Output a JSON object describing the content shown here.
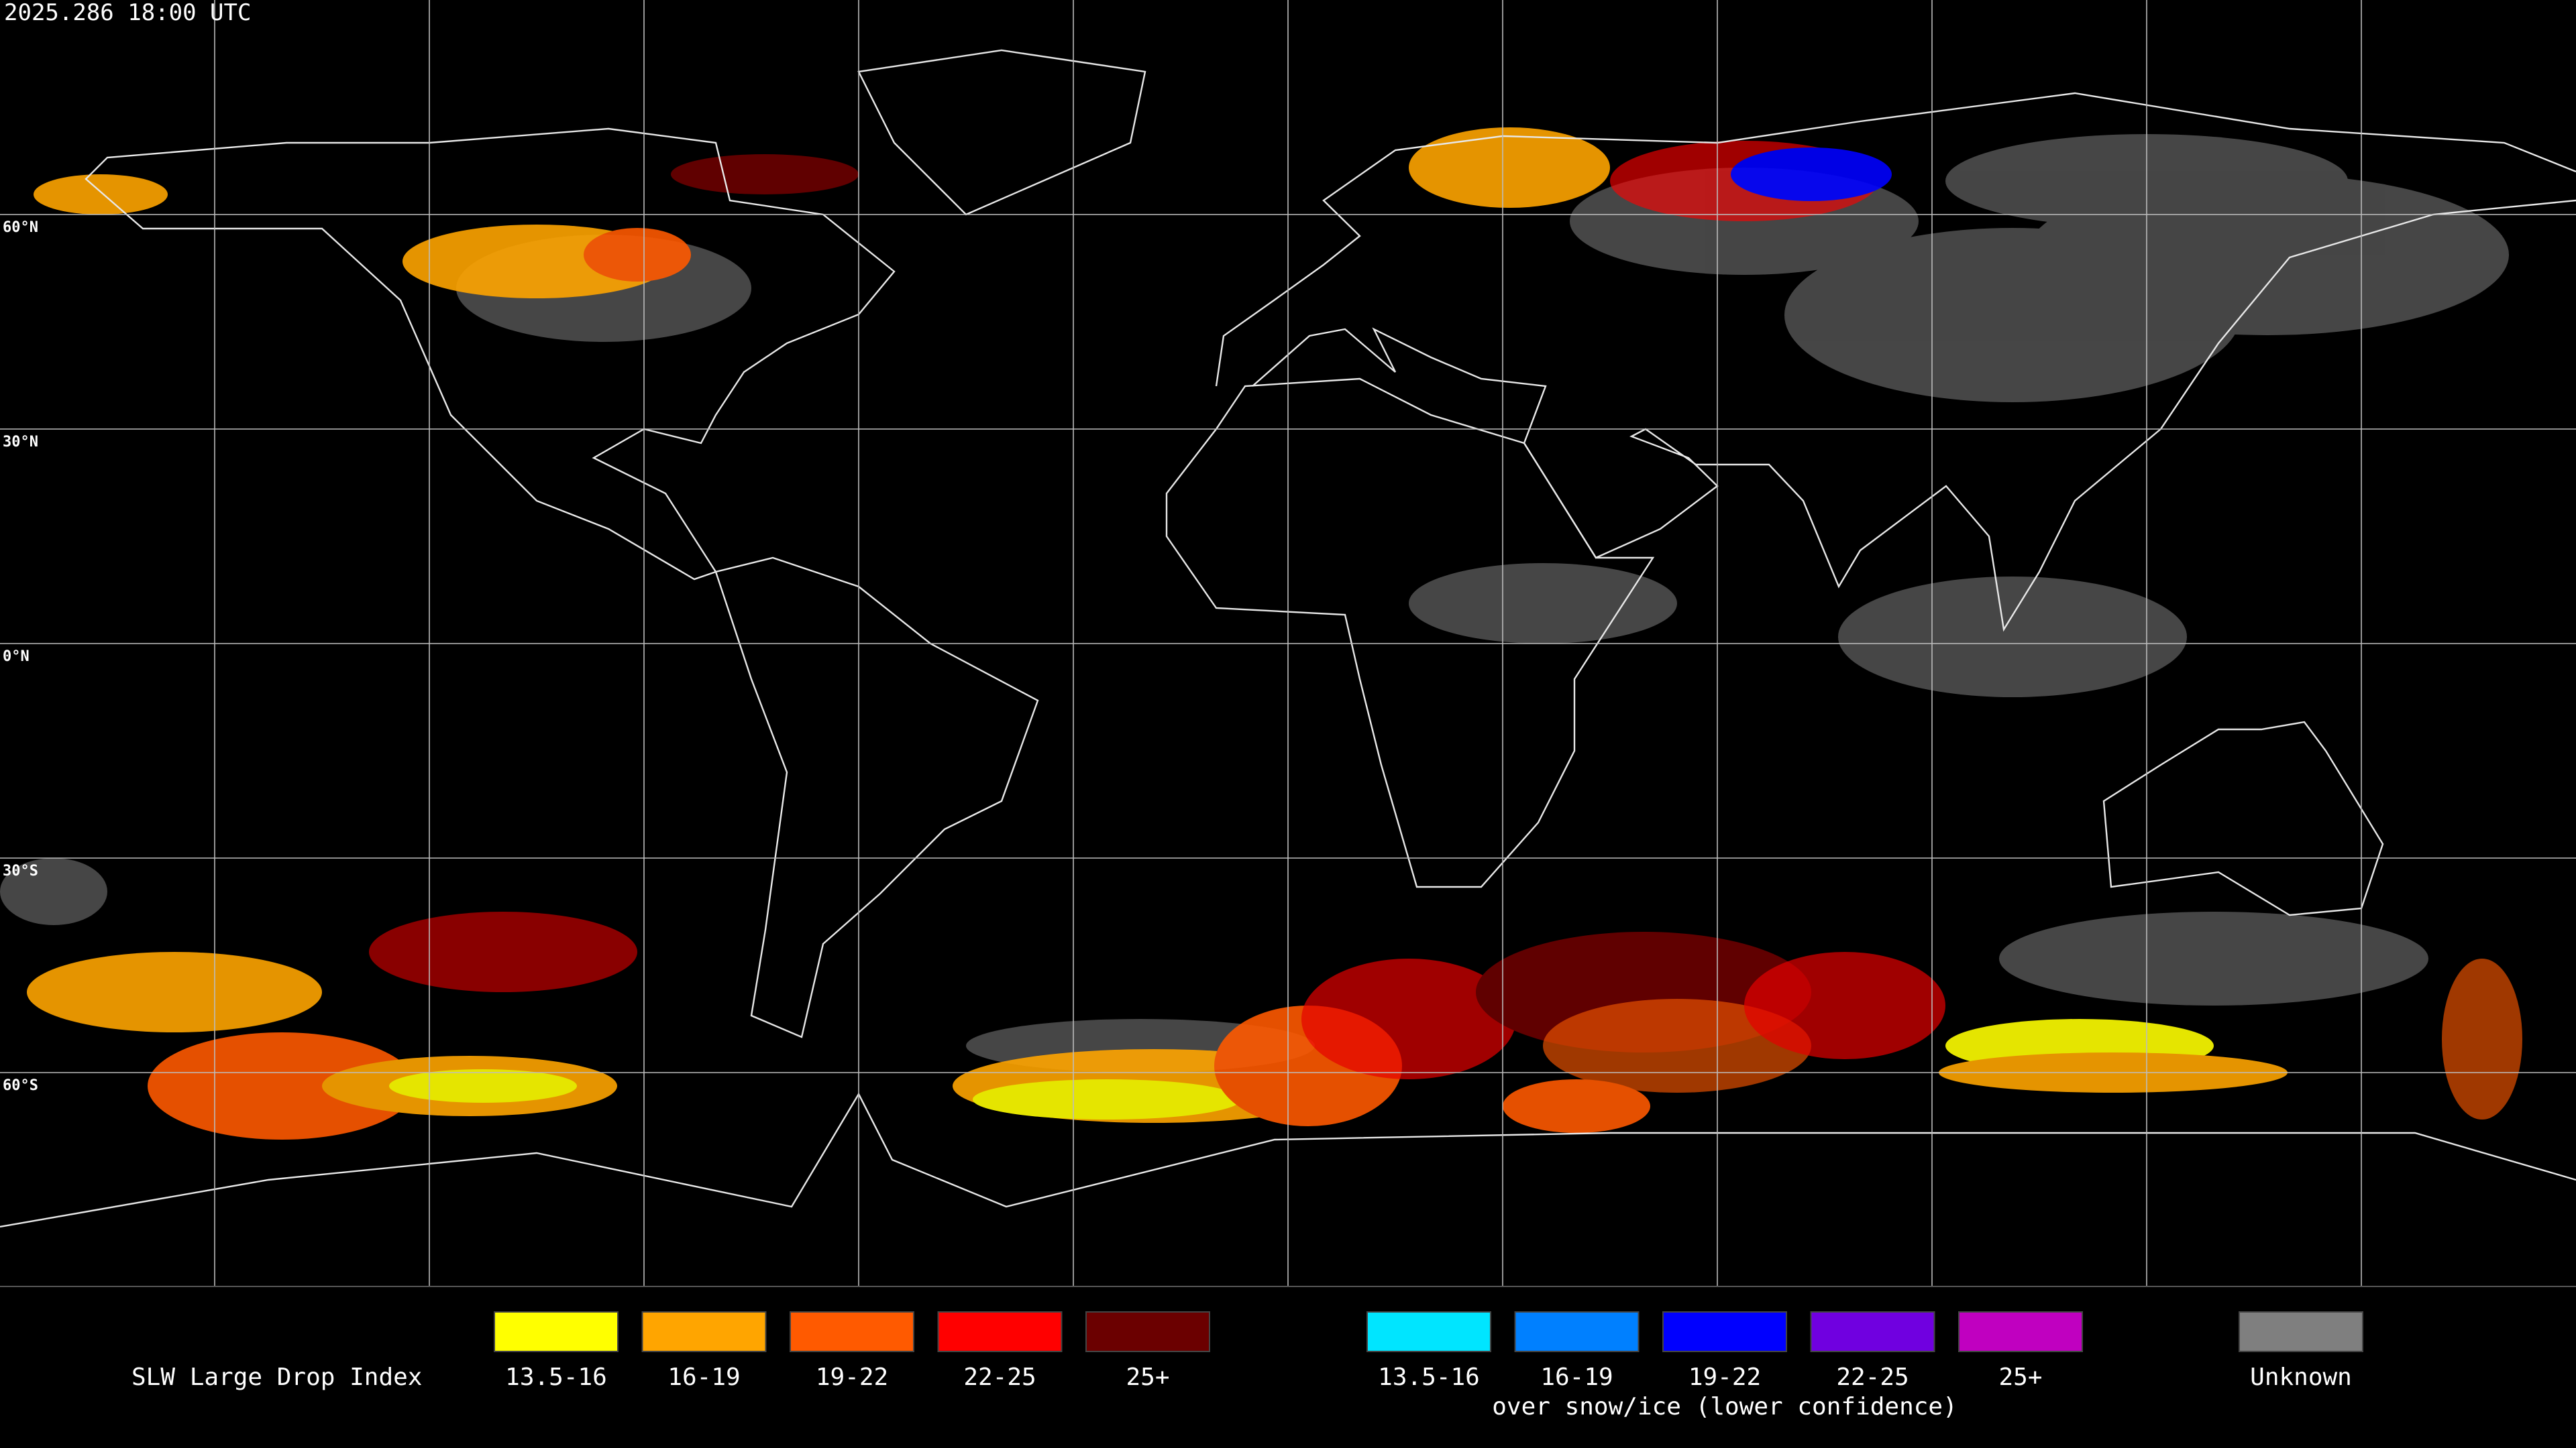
{
  "timestamp": "2025.286 18:00 UTC",
  "grid_labels": [
    "60°N",
    "30°N",
    "0°N",
    "30°S",
    "60°S"
  ],
  "legend": {
    "title": "SLW Large Drop Index",
    "groups": [
      {
        "items": [
          {
            "label": "13.5-16",
            "color": "#ffff00"
          },
          {
            "label": "16-19",
            "color": "#ffa500"
          },
          {
            "label": "19-22",
            "color": "#ff5a00"
          },
          {
            "label": "22-25",
            "color": "#ff0000"
          },
          {
            "label": "25+",
            "color": "#6b0000"
          }
        ]
      },
      {
        "items": [
          {
            "label": "13.5-16",
            "color": "#00e5ff"
          },
          {
            "label": "16-19",
            "color": "#0080ff"
          },
          {
            "label": "19-22",
            "color": "#0000ff"
          },
          {
            "label": "22-25",
            "color": "#7000e0"
          },
          {
            "label": "25+",
            "color": "#c000c0"
          }
        ],
        "note": "over snow/ice (lower confidence)"
      },
      {
        "items": [
          {
            "label": "Unknown",
            "color": "#7f7f7f"
          }
        ]
      }
    ]
  }
}
